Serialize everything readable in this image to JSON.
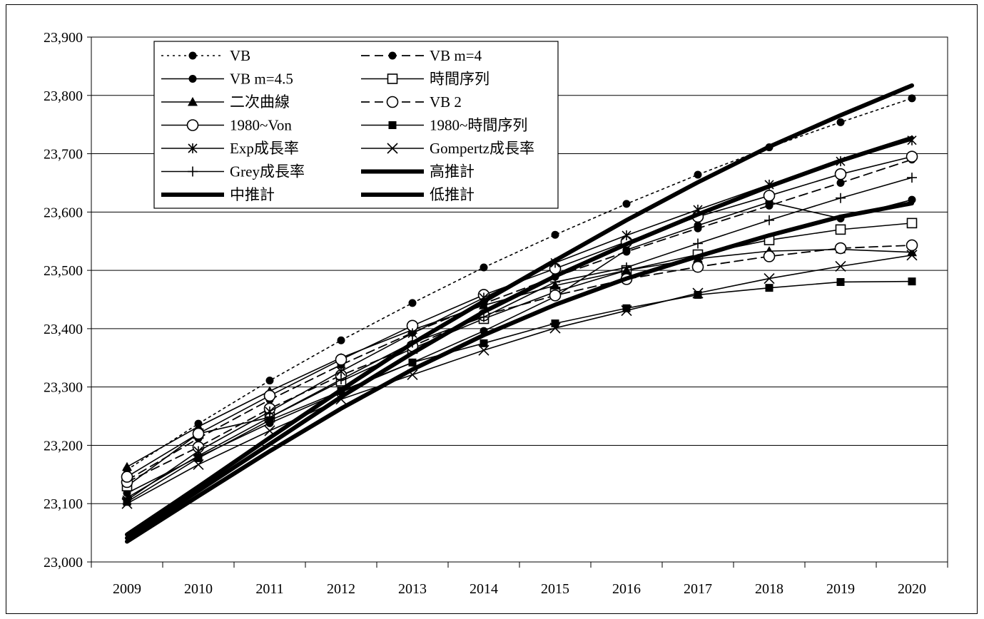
{
  "chart_data": {
    "type": "line",
    "title": "",
    "xlabel": "",
    "ylabel": "",
    "categories": [
      "2009",
      "2010",
      "2011",
      "2012",
      "2013",
      "2014",
      "2015",
      "2016",
      "2017",
      "2018",
      "2019",
      "2020"
    ],
    "ylim": [
      23000,
      23900
    ],
    "yticks": [
      23000,
      23100,
      23200,
      23300,
      23400,
      23500,
      23600,
      23700,
      23800,
      23900
    ],
    "ytick_labels": [
      "23,000",
      "23,100",
      "23,200",
      "23,300",
      "23,400",
      "23,500",
      "23,600",
      "23,700",
      "23,800",
      "23,900"
    ],
    "grid": "horizontal",
    "legend_position": "top-left",
    "series": [
      {
        "name": "VB",
        "style": "dotted",
        "marker": "filled-circle",
        "values": [
          23158,
          23237,
          23311,
          23380,
          23444,
          23505,
          23561,
          23614,
          23664,
          23711,
          23754,
          23795
        ]
      },
      {
        "name": "VB m=4",
        "style": "dashed",
        "marker": "filled-circle",
        "values": [
          23140,
          23212,
          23278,
          23338,
          23393,
          23443,
          23489,
          23532,
          23572,
          23611,
          23650,
          23690
        ]
      },
      {
        "name": "VB m=4.5",
        "style": "solid",
        "marker": "filled-circle",
        "values": [
          23118,
          23180,
          23238,
          23291,
          23342,
          23396,
          23455,
          23535,
          23577,
          23617,
          23589,
          23621
        ]
      },
      {
        "name": "時間序列",
        "style": "solid",
        "marker": "open-square",
        "values": [
          23130,
          23220,
          23248,
          23310,
          23366,
          23417,
          23463,
          23500,
          23527,
          23552,
          23570,
          23581
        ]
      },
      {
        "name": "二次曲線",
        "style": "solid",
        "marker": "filled-triangle",
        "values": [
          23163,
          23232,
          23293,
          23350,
          23398,
          23440,
          23474,
          23500,
          23520,
          23533,
          23536,
          23531
        ]
      },
      {
        "name": "VB 2",
        "style": "dashed",
        "marker": "open-circle",
        "values": [
          23137,
          23197,
          23263,
          23320,
          23370,
          23423,
          23457,
          23485,
          23506,
          23524,
          23538,
          23543
        ]
      },
      {
        "name": "1980~Von",
        "style": "solid",
        "marker": "open-circle",
        "values": [
          23146,
          23220,
          23285,
          23347,
          23405,
          23458,
          23503,
          23549,
          23592,
          23628,
          23665,
          23695
        ]
      },
      {
        "name": "1980~時間序列",
        "style": "solid",
        "marker": "filled-square",
        "values": [
          23103,
          23178,
          23243,
          23293,
          23342,
          23375,
          23409,
          23435,
          23458,
          23470,
          23480,
          23481
        ]
      },
      {
        "name": "Exp成長率",
        "style": "solid",
        "marker": "asterisk",
        "values": [
          23106,
          23190,
          23258,
          23327,
          23392,
          23453,
          23513,
          23560,
          23604,
          23647,
          23687,
          23723
        ]
      },
      {
        "name": "Gompertz成長率",
        "style": "solid",
        "marker": "x",
        "values": [
          23100,
          23167,
          23225,
          23279,
          23321,
          23363,
          23401,
          23431,
          23461,
          23486,
          23507,
          23526
        ]
      },
      {
        "name": "Grey成長率",
        "style": "solid",
        "marker": "plus",
        "values": [
          23110,
          23182,
          23248,
          23313,
          23376,
          23420,
          23480,
          23505,
          23546,
          23586,
          23624,
          23659
        ]
      },
      {
        "name": "高推計",
        "style": "thick",
        "marker": "none",
        "values": [
          23047,
          23129,
          23213,
          23295,
          23375,
          23447,
          23517,
          23586,
          23651,
          23712,
          23766,
          23817
        ]
      },
      {
        "name": "中推計",
        "style": "thick",
        "marker": "none",
        "values": [
          23041,
          23122,
          23202,
          23283,
          23358,
          23429,
          23490,
          23545,
          23596,
          23644,
          23688,
          23727
        ]
      },
      {
        "name": "低推計",
        "style": "thick",
        "marker": "none",
        "values": [
          23035,
          23113,
          23190,
          23263,
          23330,
          23389,
          23441,
          23486,
          23524,
          23560,
          23592,
          23615
        ]
      }
    ]
  }
}
